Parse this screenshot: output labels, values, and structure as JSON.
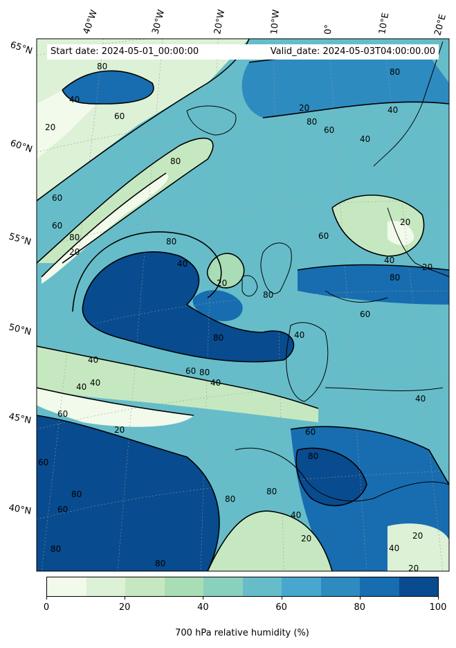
{
  "header": {
    "start_date": "Start date: 2024-05-01_00:00:00",
    "valid_date": "Valid_date: 2024-05-03T04:00:00.00"
  },
  "longitude_labels": [
    "40°W",
    "30°W",
    "20°W",
    "10°W",
    "0°",
    "10°E",
    "20°E"
  ],
  "latitude_labels": [
    "65°N",
    "60°N",
    "55°N",
    "50°N",
    "45°N",
    "40°N"
  ],
  "contour_levels": [
    "20",
    "40",
    "60",
    "80"
  ],
  "colorbar": {
    "title": "700 hPa relative humidity (%)",
    "ticks": [
      "0",
      "20",
      "40",
      "60",
      "80",
      "100"
    ],
    "colors": [
      "#f2faeb",
      "#dcf1d6",
      "#c6e8c0",
      "#a9ddb6",
      "#8ad0be",
      "#66bdc9",
      "#48a7cf",
      "#2e8bc0",
      "#176db0",
      "#084b8f"
    ]
  }
}
